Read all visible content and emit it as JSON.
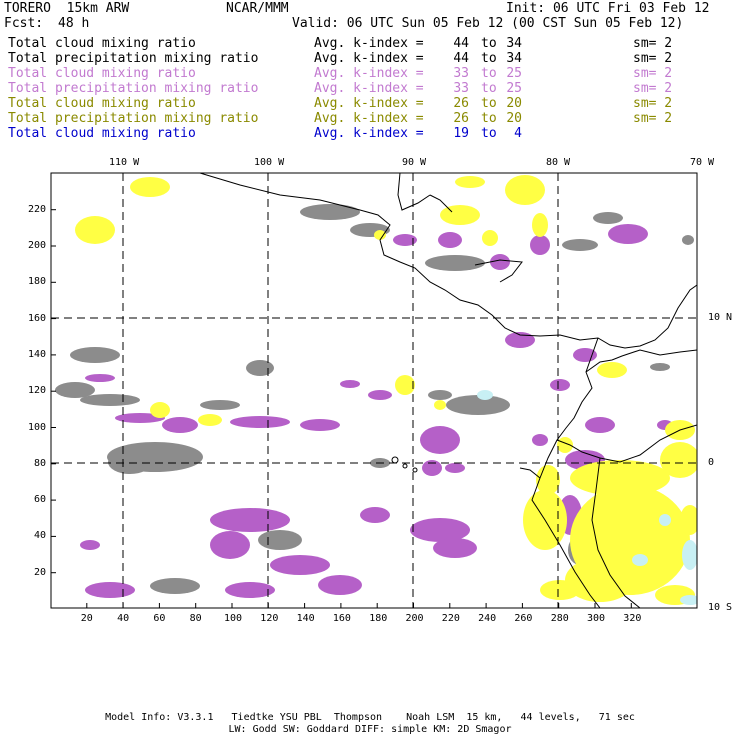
{
  "header": {
    "model": "TORERO  15km ARW",
    "org": "NCAR/MMM",
    "init": "Init: 06 UTC Fri 03 Feb 12",
    "fcst_label": "Fcst:",
    "fcst_value": "48 h",
    "valid": "Valid: 06 UTC Sun 05 Feb 12 (00 CST Sun 05 Feb 12)"
  },
  "legend": [
    {
      "var": "Total cloud mixing ratio",
      "avg": "Avg. k-index =",
      "from": "44",
      "to": "to",
      "end": "34",
      "sm": "sm= 2",
      "color": "#000000"
    },
    {
      "var": "Total precipitation mixing ratio",
      "avg": "Avg. k-index =",
      "from": "44",
      "to": "to",
      "end": "34",
      "sm": "sm= 2",
      "color": "#000000"
    },
    {
      "var": "Total cloud mixing ratio",
      "avg": "Avg. k-index =",
      "from": "33",
      "to": "to",
      "end": "25",
      "sm": "sm= 2",
      "color": "#c27ad0"
    },
    {
      "var": "Total precipitation mixing ratio",
      "avg": "Avg. k-index =",
      "from": "33",
      "to": "to",
      "end": "25",
      "sm": "sm= 2",
      "color": "#c27ad0"
    },
    {
      "var": "Total cloud mixing ratio",
      "avg": "Avg. k-index =",
      "from": "26",
      "to": "to",
      "end": "20",
      "sm": "sm= 2",
      "color": "#8a8a00"
    },
    {
      "var": "Total precipitation mixing ratio",
      "avg": "Avg. k-index =",
      "from": "26",
      "to": "to",
      "end": "20",
      "sm": "sm= 2",
      "color": "#8a8a00"
    },
    {
      "var": "Total cloud mixing ratio",
      "avg": "Avg. k-index =",
      "from": "19",
      "to": "to",
      "end": "4",
      "sm": "",
      "color": "#0000cc"
    }
  ],
  "axes": {
    "lon_labels": [
      "110 W",
      "100 W",
      "90 W",
      "80 W",
      "70 W"
    ],
    "lat_labels": [
      "10 N",
      "0",
      "10 S"
    ],
    "x_ticks": [
      "20",
      "40",
      "60",
      "80",
      "100",
      "120",
      "140",
      "160",
      "180",
      "200",
      "220",
      "240",
      "260",
      "280",
      "300",
      "320"
    ],
    "y_ticks": [
      "220",
      "200",
      "180",
      "160",
      "140",
      "120",
      "100",
      "80",
      "60",
      "40",
      "20"
    ]
  },
  "footer": {
    "line1": "Model Info: V3.3.1   Tiedtke YSU PBL  Thompson    Noah LSM  15 km,   44 levels,   71 sec",
    "line2": "LW: Godd SW: Goddard DIFF: simple KM: 2D Smagor"
  },
  "colors": {
    "gray_field": "#8c8c8c",
    "purple_field": "#b560c8",
    "yellow_field": "#ffff44",
    "cyan_field": "#c8f0f4",
    "coastline": "#000000",
    "gridline": "#000000"
  }
}
